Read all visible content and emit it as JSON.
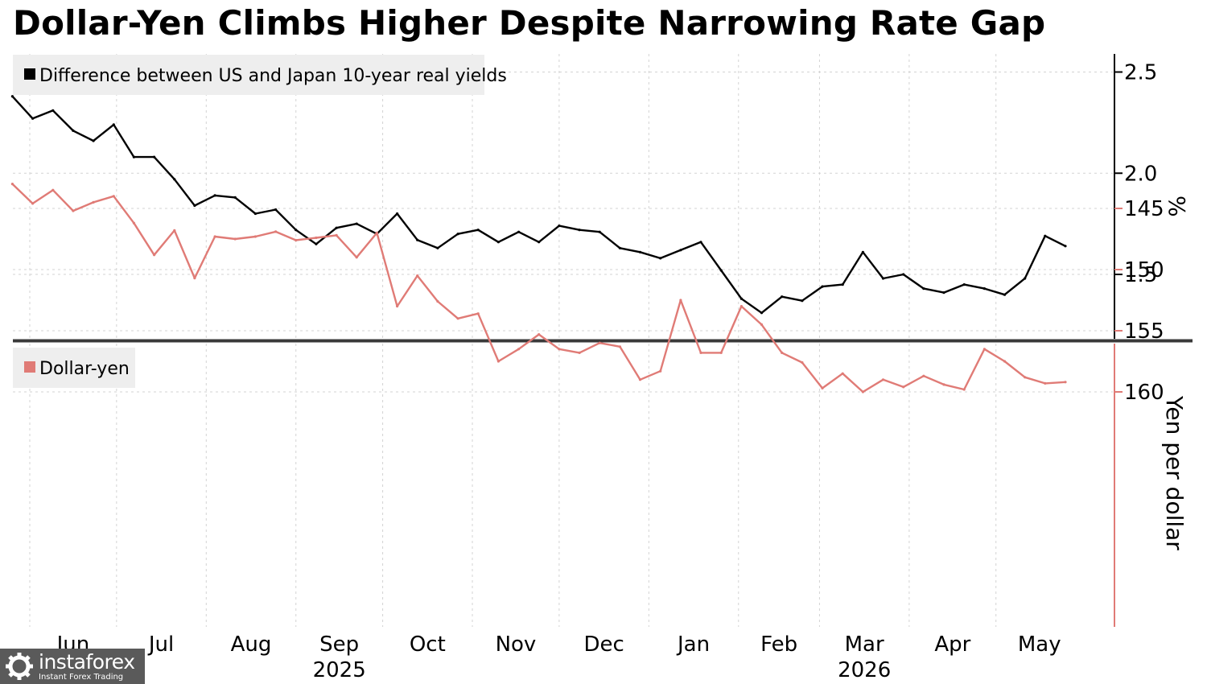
{
  "title": "Dollar-Yen Climbs Higher Despite Narrowing Rate Gap",
  "colors": {
    "spread": "#000000",
    "usdjpy": "#e07b76",
    "grid": "#d3d3d3",
    "legend_bg": "#eeeeee",
    "divider": "#3a3a3a"
  },
  "x_axis": {
    "months": [
      "Jun",
      "Jul",
      "Aug",
      "Sep",
      "Oct",
      "Nov",
      "Dec",
      "Jan",
      "Feb",
      "Mar",
      "Apr",
      "May"
    ],
    "years": [
      "2025",
      "2026"
    ]
  },
  "chart_data": [
    {
      "type": "line",
      "title": "",
      "xlabel": "",
      "ylabel": "%",
      "ylim": [
        1.2,
        2.6
      ],
      "yticks": [
        "2.5",
        "2.0",
        "1.5"
      ],
      "legend": "top-left",
      "grid": true,
      "x": [
        "2025-05-26",
        "2025-06-02",
        "2025-06-09",
        "2025-06-16",
        "2025-06-23",
        "2025-06-30",
        "2025-07-07",
        "2025-07-14",
        "2025-07-21",
        "2025-07-28",
        "2025-08-04",
        "2025-08-11",
        "2025-08-18",
        "2025-08-25",
        "2025-09-01",
        "2025-09-08",
        "2025-09-15",
        "2025-09-22",
        "2025-09-29",
        "2025-10-06",
        "2025-10-13",
        "2025-10-20",
        "2025-10-27",
        "2025-11-03",
        "2025-11-10",
        "2025-11-17",
        "2025-11-24",
        "2025-12-01",
        "2025-12-08",
        "2025-12-15",
        "2025-12-22",
        "2025-12-29",
        "2026-01-05",
        "2026-01-12",
        "2026-01-19",
        "2026-01-26",
        "2026-02-02",
        "2026-02-09",
        "2026-02-16",
        "2026-02-23",
        "2026-03-02",
        "2026-03-09",
        "2026-03-16",
        "2026-03-23",
        "2026-03-30",
        "2026-04-06",
        "2026-04-13",
        "2026-04-20",
        "2026-04-27",
        "2026-05-04",
        "2026-05-11",
        "2026-05-18",
        "2026-05-25"
      ],
      "series": [
        {
          "name": "Difference between US and Japan 10-year real yields",
          "values": [
            2.38,
            2.27,
            2.31,
            2.21,
            2.16,
            2.24,
            2.08,
            2.08,
            1.97,
            1.84,
            1.89,
            1.88,
            1.8,
            1.82,
            1.72,
            1.65,
            1.73,
            1.75,
            1.7,
            1.8,
            1.67,
            1.63,
            1.7,
            1.72,
            1.66,
            1.71,
            1.66,
            1.74,
            1.72,
            1.71,
            1.63,
            1.61,
            1.58,
            1.62,
            1.66,
            1.52,
            1.38,
            1.31,
            1.39,
            1.37,
            1.44,
            1.45,
            1.61,
            1.48,
            1.5,
            1.43,
            1.41,
            1.45,
            1.43,
            1.4,
            1.48,
            1.69,
            1.64
          ]
        }
      ]
    },
    {
      "type": "line",
      "title": "",
      "xlabel": "",
      "ylabel": "Yen per dollar",
      "ylim": [
        141,
        163
      ],
      "yticks": [
        "160",
        "155",
        "150",
        "145"
      ],
      "legend": "top-left",
      "grid": true,
      "x": [
        "2025-05-26",
        "2025-06-02",
        "2025-06-09",
        "2025-06-16",
        "2025-06-23",
        "2025-06-30",
        "2025-07-07",
        "2025-07-14",
        "2025-07-21",
        "2025-07-28",
        "2025-08-04",
        "2025-08-11",
        "2025-08-18",
        "2025-08-25",
        "2025-09-01",
        "2025-09-08",
        "2025-09-15",
        "2025-09-22",
        "2025-09-29",
        "2025-10-06",
        "2025-10-13",
        "2025-10-20",
        "2025-10-27",
        "2025-11-03",
        "2025-11-10",
        "2025-11-17",
        "2025-11-24",
        "2025-12-01",
        "2025-12-08",
        "2025-12-15",
        "2025-12-22",
        "2025-12-29",
        "2026-01-05",
        "2026-01-12",
        "2026-01-19",
        "2026-01-26",
        "2026-02-02",
        "2026-02-09",
        "2026-02-16",
        "2026-02-23",
        "2026-03-02",
        "2026-03-09",
        "2026-03-16",
        "2026-03-23",
        "2026-03-30",
        "2026-04-06",
        "2026-04-13",
        "2026-04-20",
        "2026-04-27",
        "2026-05-04",
        "2026-05-11",
        "2026-05-18",
        "2026-05-25"
      ],
      "series": [
        {
          "name": "Dollar-yen",
          "values": [
            143.0,
            144.6,
            143.5,
            145.2,
            144.5,
            144.0,
            146.2,
            148.8,
            146.8,
            150.7,
            147.3,
            147.5,
            147.3,
            146.9,
            147.6,
            147.4,
            147.2,
            149.0,
            147.0,
            153.0,
            150.5,
            152.6,
            154.0,
            153.6,
            157.5,
            156.5,
            155.3,
            156.5,
            156.8,
            156.0,
            156.3,
            159.0,
            158.3,
            152.5,
            156.8,
            156.8,
            153.0,
            154.5,
            156.8,
            157.6,
            159.7,
            158.5,
            160.0,
            159.0,
            159.6,
            158.7,
            159.4,
            159.8,
            156.5,
            157.5,
            158.8,
            159.3,
            159.2
          ]
        }
      ]
    }
  ]
}
